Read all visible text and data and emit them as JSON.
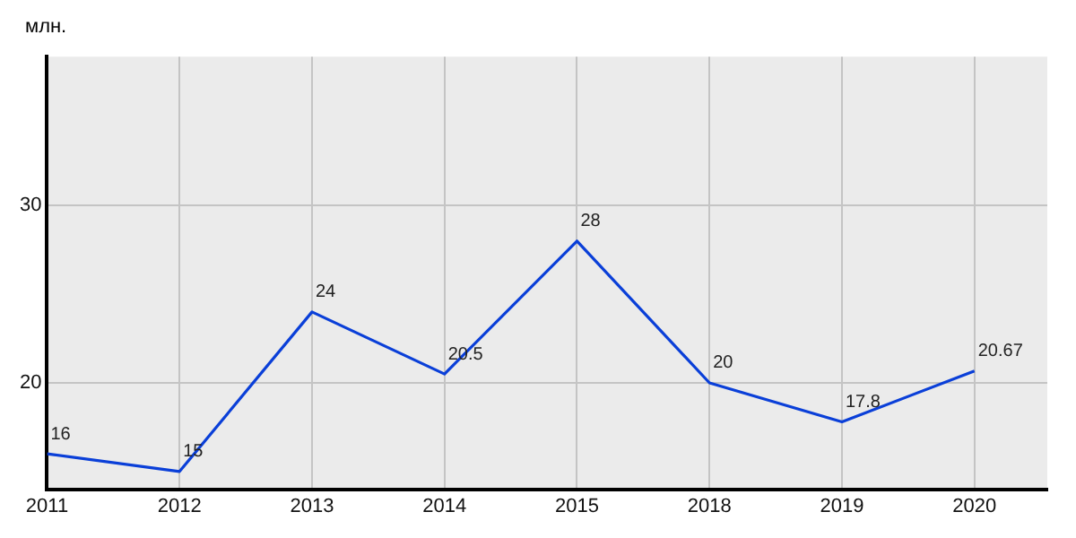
{
  "chart_data": {
    "type": "line",
    "ylabel": "млн.",
    "categories": [
      "2011",
      "2012",
      "2013",
      "2014",
      "2015",
      "2018",
      "2019",
      "2020"
    ],
    "series": [
      {
        "color": "#0a3fd8",
        "values": [
          16,
          15,
          24,
          20.5,
          28,
          20,
          17.8,
          20.67
        ]
      }
    ],
    "ylim": [
      14,
      38.4
    ],
    "yticks": [
      20,
      30
    ],
    "grid": true,
    "data_labels": true,
    "legend": false,
    "marker": "none",
    "line_style": "solid"
  }
}
